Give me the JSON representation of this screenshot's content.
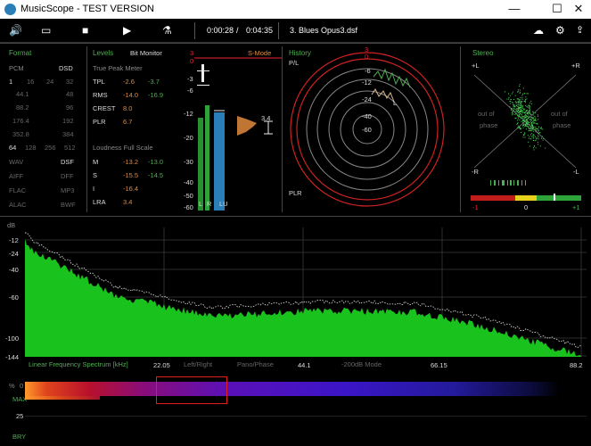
{
  "window": {
    "title": "MusicScope - TEST VERSION",
    "min": "—",
    "max": "☐",
    "close": "✕"
  },
  "toolbar": {
    "time_elapsed": "0:00:28",
    "time_sep": "/",
    "time_total": "0:04:35",
    "track": "3. Blues Opus3.dsf"
  },
  "format": {
    "title": "Format",
    "pcm": "PCM",
    "dsd": "DSD",
    "dsd_rates": [
      "1",
      "16",
      "24",
      "32"
    ],
    "pcm_rates": [
      [
        "44.1",
        "48"
      ],
      [
        "88.2",
        "96"
      ],
      [
        "176.4",
        "192"
      ],
      [
        "352.8",
        "384"
      ]
    ],
    "bits": [
      "64",
      "128",
      "256",
      "512"
    ],
    "types": [
      [
        "WAV",
        "DSF"
      ],
      [
        "AIFF",
        "DFF"
      ],
      [
        "FLAC",
        "MP3"
      ],
      [
        "ALAC",
        "BWF"
      ]
    ]
  },
  "levels": {
    "title": "Levels",
    "bit_monitor": "Bit Monitor",
    "peak_title": "True Peak Meter",
    "peak_rows": [
      {
        "label": "TPL",
        "l": "-2.6",
        "r": "-3.7"
      },
      {
        "label": "RMS",
        "l": "-14.0",
        "r": "-16.9"
      },
      {
        "label": "CREST",
        "l": "8.0",
        "r": ""
      },
      {
        "label": "PLR",
        "l": "6.7",
        "r": ""
      }
    ],
    "loud_title": "Loudness Full Scale",
    "loud_rows": [
      {
        "label": "M",
        "l": "-13.2",
        "r": "-13.0"
      },
      {
        "label": "S",
        "l": "-15.5",
        "r": "-14.5"
      },
      {
        "label": "I",
        "l": "-16.4",
        "r": ""
      },
      {
        "label": "LRA",
        "l": "3.4",
        "r": ""
      }
    ]
  },
  "meter": {
    "scale_top": [
      "3",
      "0",
      "-3",
      "-6"
    ],
    "scale_bottom": [
      "-12",
      "-20",
      "-30",
      "-40",
      "-50",
      "-60"
    ],
    "labels": [
      "L",
      "R",
      "LU"
    ],
    "smode": "S-Mode",
    "marker": "3.4"
  },
  "history": {
    "title": "History",
    "pl": "P/L",
    "plr": "PLR",
    "rings": [
      "3",
      "0",
      "-6",
      "-12",
      "-24",
      "-40",
      "-60"
    ],
    "trace_l": "L"
  },
  "stereo": {
    "title": "Stereo",
    "plus_l": "+L",
    "plus_r": "+R",
    "minus_l": "-L",
    "minus_r": "-R",
    "oop1": "out of",
    "oop2": "phase",
    "scale": [
      "-1",
      "0",
      "+1"
    ]
  },
  "spectrum": {
    "db": "dB",
    "y_ticks": [
      "-12",
      "-24",
      "-40",
      "-60",
      "-100",
      "-144"
    ],
    "title": "Linear Frequency Spectrum [kHz]",
    "x_ticks": [
      "22.05",
      "44.1",
      "66.15",
      "88.2"
    ],
    "modes": [
      "Left/Right",
      "Pano/Phase",
      "-200dB Mode"
    ]
  },
  "bottom": {
    "pct": "%",
    "max": "MAX",
    "n25": "25",
    "bry": "BRY",
    "zero": "0"
  }
}
